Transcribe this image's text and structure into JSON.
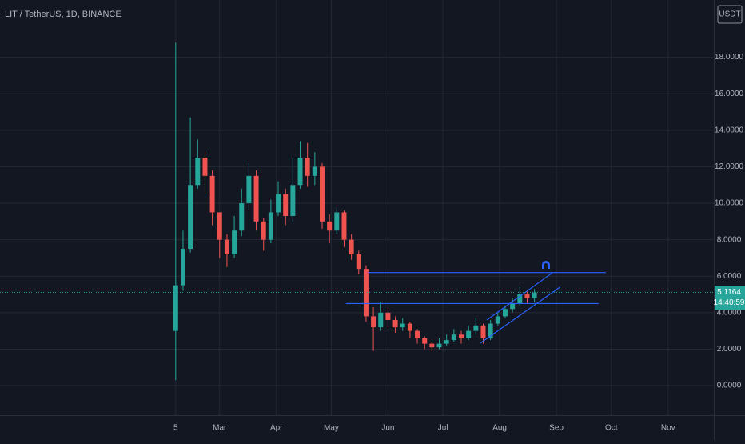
{
  "chart_data": {
    "type": "candlestick",
    "title": "LIT / TetherUS, 1D, BINANCE",
    "currency": "USDT",
    "x": [
      0,
      4,
      8,
      12,
      16,
      20,
      24,
      28,
      32,
      36,
      40,
      44,
      48,
      52,
      56,
      60,
      64,
      68,
      72,
      76,
      80,
      84,
      88,
      92,
      96,
      100,
      104,
      108,
      112,
      116,
      120,
      124,
      128,
      132,
      136,
      140,
      144,
      148,
      152,
      156,
      160,
      164,
      168,
      172,
      176,
      180,
      184,
      188,
      192,
      196
    ],
    "open": [
      3,
      5.5,
      7.5,
      11,
      12.5,
      11.5,
      9.5,
      8,
      7.2,
      8.5,
      10,
      11.5,
      9,
      8,
      9.5,
      10.5,
      9.3,
      11,
      12.5,
      11.5,
      12,
      9,
      8.5,
      9.5,
      8,
      7.2,
      6.4,
      3.8,
      3.2,
      4.0,
      3.6,
      3.2,
      3.4,
      3.0,
      2.6,
      2.3,
      2.1,
      2.3,
      2.5,
      2.8,
      2.6,
      3.0,
      3.3,
      2.6,
      3.4,
      3.8,
      4.2,
      4.5,
      5.0,
      4.8
    ],
    "high": [
      18.8,
      8.5,
      14.7,
      13.5,
      12.8,
      11.8,
      9.5,
      8.3,
      9.3,
      10.8,
      12.2,
      11.8,
      9.2,
      10.2,
      11.2,
      10.8,
      12.5,
      13.4,
      13.3,
      12.8,
      12.2,
      9.4,
      9.8,
      9.6,
      8.3,
      7.4,
      6.6,
      4.3,
      4.6,
      4.3,
      3.8,
      3.7,
      3.5,
      3.1,
      2.7,
      2.4,
      2.6,
      2.8,
      3.1,
      3.0,
      3.3,
      3.7,
      3.4,
      3.6,
      4.0,
      4.4,
      4.8,
      5.4,
      5.2,
      5.3
    ],
    "low": [
      0.3,
      5.2,
      7.3,
      10.8,
      10.5,
      8.8,
      7.0,
      6.5,
      7.0,
      8.2,
      9.6,
      8.5,
      7.4,
      7.8,
      9.3,
      8.8,
      9.0,
      10.8,
      10.9,
      11.0,
      8.6,
      7.8,
      8.3,
      7.6,
      6.9,
      6.1,
      3.5,
      1.9,
      3.0,
      3.2,
      2.9,
      3.0,
      2.6,
      2.3,
      2.0,
      1.9,
      2.0,
      2.2,
      2.4,
      2.3,
      2.5,
      2.8,
      2.3,
      2.5,
      3.3,
      3.7,
      4.0,
      4.4,
      4.5,
      4.6
    ],
    "close": [
      5.5,
      7.5,
      11,
      12.5,
      11.5,
      9.5,
      8,
      7.2,
      8.5,
      10,
      11.5,
      9,
      8,
      9.5,
      10.5,
      9.3,
      11,
      12.5,
      11.5,
      12,
      9,
      8.5,
      9.5,
      8,
      7.2,
      6.4,
      3.8,
      3.2,
      4.0,
      3.6,
      3.2,
      3.4,
      3.0,
      2.6,
      2.3,
      2.1,
      2.3,
      2.5,
      2.8,
      2.6,
      3.0,
      3.3,
      2.6,
      3.4,
      3.8,
      4.2,
      4.5,
      5.0,
      4.8,
      5.1
    ],
    "up_color": "#26a69a",
    "down_color": "#ef5350",
    "xlim": [
      -96,
      294
    ],
    "ylim": [
      -1.62,
      21.14
    ],
    "yticks": [
      {
        "value": 0,
        "label": "0.0000"
      },
      {
        "value": 2,
        "label": "2.0000"
      },
      {
        "value": 4,
        "label": "4.0000"
      },
      {
        "value": 6,
        "label": "6.0000"
      },
      {
        "value": 8,
        "label": "8.0000"
      },
      {
        "value": 10,
        "label": "10.0000"
      },
      {
        "value": 12,
        "label": "12.0000"
      },
      {
        "value": 14,
        "label": "14.0000"
      },
      {
        "value": 16,
        "label": "16.0000"
      },
      {
        "value": 18,
        "label": "18.0000"
      }
    ],
    "xticks": [
      {
        "value": 0,
        "label": "5"
      },
      {
        "value": 24,
        "label": "Mar"
      },
      {
        "value": 55,
        "label": "Apr"
      },
      {
        "value": 85,
        "label": "May"
      },
      {
        "value": 116,
        "label": "Jun"
      },
      {
        "value": 146,
        "label": "Jul"
      },
      {
        "value": 177,
        "label": "Aug"
      },
      {
        "value": 208,
        "label": "Sep"
      },
      {
        "value": 238,
        "label": "Oct"
      },
      {
        "value": 269,
        "label": "Nov"
      }
    ],
    "grid": true,
    "last_price": 5.1164,
    "countdown": "14:40:59",
    "drawings": [
      {
        "x": [
          105,
          235
        ],
        "y": [
          6.2,
          6.2
        ],
        "color": "#2962ff"
      },
      {
        "x": [
          93,
          231
        ],
        "y": [
          4.5,
          4.5
        ],
        "color": "#2962ff"
      },
      {
        "x": [
          170,
          206
        ],
        "y": [
          3.6,
          6.2
        ],
        "color": "#2962ff"
      },
      {
        "x": [
          166,
          210
        ],
        "y": [
          2.3,
          5.4
        ],
        "color": "#2962ff"
      }
    ]
  }
}
